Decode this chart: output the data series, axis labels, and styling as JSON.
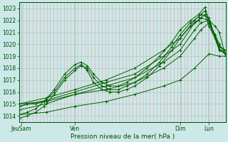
{
  "xlabel": "Pression niveau de la mer( hPa )",
  "bg_color": "#cce8e8",
  "grid_color_major": "#aacaca",
  "grid_color_minor": "#f0c0c0",
  "line_color": "#006000",
  "ylim": [
    1013.5,
    1023.5
  ],
  "yticks": [
    1014,
    1015,
    1016,
    1017,
    1018,
    1019,
    1020,
    1021,
    1022,
    1023
  ],
  "xlim": [
    0,
    1.0
  ],
  "x_tick_labels": [
    "JeuSam",
    "Ven",
    "Dim",
    "Lun"
  ],
  "x_tick_pos": [
    0.01,
    0.27,
    0.78,
    0.92
  ],
  "series": [
    {
      "x": [
        0.0,
        0.13,
        0.27,
        0.42,
        0.56,
        0.7,
        0.78,
        0.85,
        0.92,
        0.97,
        1.0
      ],
      "y": [
        1014.1,
        1014.3,
        1014.8,
        1015.2,
        1015.8,
        1016.5,
        1017.0,
        1018.0,
        1019.2,
        1019.0,
        1019.0
      ]
    },
    {
      "x": [
        0.0,
        0.13,
        0.27,
        0.42,
        0.56,
        0.7,
        0.78,
        0.85,
        0.88,
        0.92,
        0.97,
        1.0
      ],
      "y": [
        1015.0,
        1015.5,
        1016.2,
        1017.0,
        1018.0,
        1019.5,
        1020.5,
        1022.0,
        1022.5,
        1022.2,
        1019.5,
        1019.2
      ]
    },
    {
      "x": [
        0.0,
        0.04,
        0.08,
        0.12,
        0.17,
        0.22,
        0.27,
        0.3,
        0.33,
        0.36,
        0.4,
        0.44,
        0.48,
        0.52,
        0.56,
        0.62,
        0.68,
        0.74,
        0.78,
        0.83,
        0.87,
        0.9,
        0.92,
        0.95,
        0.97,
        1.0
      ],
      "y": [
        1014.1,
        1014.3,
        1014.6,
        1015.2,
        1016.2,
        1017.5,
        1018.3,
        1018.5,
        1018.2,
        1017.5,
        1016.8,
        1016.5,
        1016.5,
        1016.8,
        1017.2,
        1018.0,
        1019.0,
        1020.2,
        1021.2,
        1022.0,
        1022.5,
        1023.1,
        1022.0,
        1021.5,
        1021.0,
        1019.0
      ]
    },
    {
      "x": [
        0.0,
        0.04,
        0.08,
        0.12,
        0.17,
        0.22,
        0.27,
        0.3,
        0.33,
        0.36,
        0.4,
        0.44,
        0.48,
        0.52,
        0.56,
        0.62,
        0.68,
        0.74,
        0.78,
        0.83,
        0.87,
        0.9,
        0.92,
        0.95,
        0.97,
        1.0
      ],
      "y": [
        1013.8,
        1014.0,
        1014.3,
        1014.8,
        1015.8,
        1017.0,
        1017.8,
        1018.2,
        1018.0,
        1017.2,
        1016.5,
        1016.2,
        1016.2,
        1016.5,
        1016.8,
        1017.5,
        1018.5,
        1019.8,
        1020.8,
        1021.8,
        1022.3,
        1022.8,
        1021.8,
        1020.8,
        1020.0,
        1019.2
      ]
    },
    {
      "x": [
        0.0,
        0.13,
        0.27,
        0.42,
        0.56,
        0.7,
        0.78,
        0.85,
        0.88,
        0.92,
        0.97,
        1.0
      ],
      "y": [
        1014.5,
        1015.0,
        1015.8,
        1016.5,
        1017.2,
        1018.5,
        1019.5,
        1021.2,
        1021.8,
        1022.0,
        1019.8,
        1019.5
      ]
    },
    {
      "x": [
        0.0,
        0.13,
        0.27,
        0.42,
        0.56,
        0.7,
        0.78,
        0.85,
        0.88,
        0.92,
        0.97,
        1.0
      ],
      "y": [
        1015.0,
        1015.2,
        1015.8,
        1016.2,
        1016.8,
        1018.0,
        1019.0,
        1020.5,
        1021.2,
        1021.8,
        1019.5,
        1019.2
      ]
    },
    {
      "x": [
        0.0,
        0.04,
        0.08,
        0.12,
        0.17,
        0.22,
        0.27,
        0.3,
        0.33,
        0.36,
        0.4,
        0.44,
        0.48,
        0.52,
        0.56,
        0.62,
        0.68,
        0.74,
        0.78,
        0.83,
        0.87,
        0.9,
        0.92,
        0.95,
        0.97,
        1.0
      ],
      "y": [
        1014.8,
        1015.0,
        1015.0,
        1015.2,
        1016.0,
        1017.2,
        1018.0,
        1018.3,
        1017.8,
        1016.8,
        1016.2,
        1016.0,
        1016.0,
        1016.2,
        1016.5,
        1017.2,
        1018.2,
        1019.5,
        1020.5,
        1021.5,
        1022.0,
        1022.5,
        1021.5,
        1020.5,
        1019.8,
        1019.5
      ]
    },
    {
      "x": [
        0.0,
        0.13,
        0.27,
        0.42,
        0.56,
        0.7,
        0.78,
        0.85,
        0.88,
        0.92,
        0.97,
        1.0
      ],
      "y": [
        1014.8,
        1015.3,
        1016.0,
        1016.8,
        1017.5,
        1019.0,
        1020.0,
        1021.8,
        1022.2,
        1022.0,
        1019.6,
        1019.3
      ]
    }
  ]
}
